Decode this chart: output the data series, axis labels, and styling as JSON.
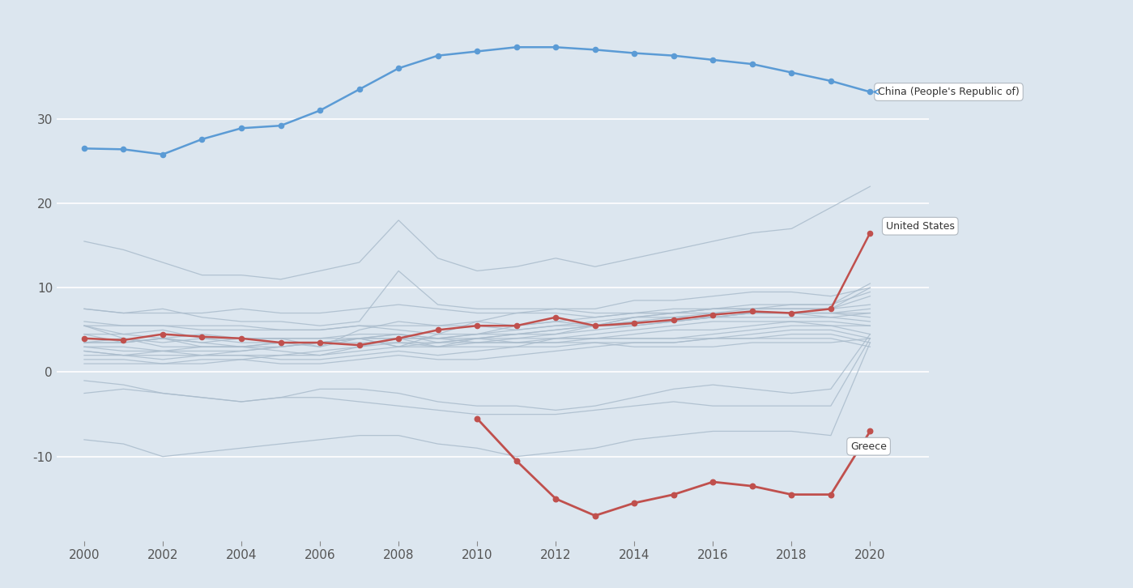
{
  "years": [
    2000,
    2001,
    2002,
    2003,
    2004,
    2005,
    2006,
    2007,
    2008,
    2009,
    2010,
    2011,
    2012,
    2013,
    2014,
    2015,
    2016,
    2017,
    2018,
    2019,
    2020
  ],
  "china": [
    26.5,
    26.4,
    25.8,
    27.6,
    28.9,
    29.2,
    31.0,
    33.5,
    36.0,
    37.5,
    38.0,
    38.5,
    38.5,
    38.2,
    37.8,
    37.5,
    37.0,
    36.5,
    35.5,
    34.5,
    33.2
  ],
  "united_states": [
    4.0,
    3.8,
    4.5,
    4.2,
    4.0,
    3.5,
    3.5,
    3.2,
    4.0,
    5.0,
    5.5,
    5.5,
    6.5,
    5.5,
    5.8,
    6.2,
    6.8,
    7.2,
    7.0,
    7.5,
    16.5
  ],
  "greece": [
    null,
    null,
    null,
    null,
    null,
    null,
    null,
    null,
    null,
    null,
    -5.5,
    -10.5,
    -15.0,
    -17.0,
    -15.5,
    -14.5,
    -13.0,
    -13.5,
    -14.5,
    -14.5,
    -7.0
  ],
  "background_color": "#dce6ef",
  "china_color": "#5b9bd5",
  "us_color": "#c0504d",
  "greece_color": "#c0504d",
  "gray_color": "#aabccc",
  "ylim": [
    -20,
    42
  ],
  "yticks": [
    -10,
    0,
    10,
    20,
    30
  ],
  "gray_series": [
    [
      15.5,
      14.5,
      13.0,
      11.5,
      11.5,
      11.0,
      12.0,
      13.0,
      18.0,
      13.5,
      12.0,
      12.5,
      13.5,
      12.5,
      13.5,
      14.5,
      15.5,
      16.5,
      17.0,
      19.5,
      22.0
    ],
    [
      7.5,
      7.0,
      7.0,
      7.0,
      7.5,
      7.0,
      7.0,
      7.5,
      8.0,
      7.5,
      7.0,
      7.0,
      7.5,
      7.5,
      8.5,
      8.5,
      9.0,
      9.5,
      9.5,
      9.0,
      10.0
    ],
    [
      5.5,
      5.5,
      5.5,
      5.5,
      5.5,
      5.0,
      5.0,
      5.5,
      5.0,
      4.5,
      4.5,
      5.0,
      5.5,
      6.0,
      6.5,
      6.5,
      7.0,
      7.5,
      7.5,
      7.5,
      9.0
    ],
    [
      6.0,
      5.5,
      5.5,
      5.0,
      5.0,
      5.0,
      5.0,
      5.5,
      5.5,
      5.5,
      5.5,
      5.0,
      5.5,
      5.5,
      6.5,
      7.0,
      7.5,
      7.5,
      8.0,
      8.0,
      9.5
    ],
    [
      4.5,
      4.5,
      5.0,
      4.0,
      3.5,
      3.5,
      3.5,
      4.0,
      4.0,
      4.0,
      4.5,
      5.5,
      6.0,
      6.5,
      7.0,
      7.5,
      7.5,
      8.0,
      8.0,
      8.0,
      10.5
    ],
    [
      3.5,
      3.5,
      4.0,
      3.0,
      3.0,
      3.5,
      3.5,
      4.0,
      4.5,
      3.5,
      4.0,
      4.5,
      4.5,
      5.5,
      6.5,
      7.0,
      7.5,
      7.5,
      7.5,
      7.5,
      10.0
    ],
    [
      3.5,
      3.5,
      4.0,
      3.5,
      3.0,
      3.5,
      3.0,
      5.0,
      6.0,
      5.5,
      6.0,
      5.5,
      6.0,
      5.5,
      6.0,
      6.0,
      6.5,
      7.0,
      7.0,
      7.0,
      7.5
    ],
    [
      3.0,
      2.5,
      2.5,
      3.0,
      3.0,
      3.0,
      3.5,
      4.0,
      4.5,
      4.0,
      4.5,
      4.5,
      5.0,
      5.5,
      6.0,
      6.5,
      6.5,
      7.0,
      7.0,
      6.5,
      7.0
    ],
    [
      5.5,
      4.0,
      3.5,
      4.0,
      4.0,
      4.0,
      3.0,
      4.0,
      3.0,
      4.5,
      6.0,
      7.0,
      7.0,
      6.5,
      7.0,
      7.0,
      7.5,
      7.5,
      7.5,
      7.5,
      8.0
    ],
    [
      3.5,
      4.0,
      3.0,
      3.0,
      3.0,
      2.5,
      2.0,
      3.0,
      4.0,
      3.0,
      4.0,
      4.5,
      5.0,
      5.5,
      5.5,
      6.0,
      6.5,
      7.0,
      7.0,
      7.0,
      6.5
    ],
    [
      2.5,
      2.0,
      2.5,
      2.0,
      2.0,
      2.0,
      2.0,
      2.5,
      3.0,
      3.0,
      3.5,
      4.0,
      4.5,
      5.0,
      5.5,
      6.0,
      6.5,
      6.5,
      6.5,
      6.5,
      6.0
    ],
    [
      2.0,
      2.0,
      2.0,
      2.0,
      2.0,
      1.5,
      1.5,
      2.0,
      2.5,
      2.0,
      2.5,
      3.0,
      4.0,
      4.5,
      5.0,
      5.5,
      6.0,
      6.0,
      6.0,
      6.0,
      5.5
    ],
    [
      5.5,
      4.5,
      4.0,
      3.5,
      4.0,
      4.0,
      4.0,
      4.5,
      4.5,
      4.0,
      4.0,
      4.0,
      4.0,
      4.0,
      4.5,
      5.0,
      5.0,
      5.5,
      6.0,
      5.5,
      5.5
    ],
    [
      2.5,
      2.0,
      1.5,
      2.0,
      2.5,
      3.0,
      3.5,
      4.0,
      4.0,
      4.0,
      3.5,
      3.5,
      3.5,
      4.0,
      4.0,
      4.0,
      4.5,
      5.0,
      5.5,
      5.5,
      4.5
    ],
    [
      3.0,
      3.0,
      2.5,
      2.5,
      2.5,
      3.0,
      3.5,
      3.5,
      3.5,
      3.5,
      4.0,
      3.5,
      4.0,
      4.0,
      4.0,
      4.0,
      4.0,
      4.5,
      5.0,
      5.0,
      4.0
    ],
    [
      1.5,
      1.5,
      1.0,
      1.0,
      1.5,
      2.0,
      2.5,
      3.0,
      3.5,
      3.0,
      3.0,
      3.0,
      3.0,
      3.5,
      3.5,
      3.5,
      4.0,
      4.0,
      4.5,
      4.5,
      3.5
    ],
    [
      -1.0,
      -1.5,
      -2.5,
      -3.0,
      -3.5,
      -3.0,
      -2.0,
      -2.0,
      -2.5,
      -3.5,
      -4.0,
      -4.0,
      -4.5,
      -4.0,
      -3.0,
      -2.0,
      -1.5,
      -2.0,
      -2.5,
      -2.0,
      4.5
    ],
    [
      4.5,
      3.5,
      4.0,
      4.5,
      4.0,
      4.0,
      4.0,
      4.0,
      3.0,
      3.5,
      3.5,
      3.5,
      3.5,
      3.5,
      3.0,
      3.0,
      3.0,
      3.5,
      3.5,
      3.5,
      4.0
    ],
    [
      -2.5,
      -2.0,
      -2.5,
      -3.0,
      -3.5,
      -3.0,
      -3.0,
      -3.5,
      -4.0,
      -4.5,
      -5.0,
      -5.0,
      -5.0,
      -4.5,
      -4.0,
      -3.5,
      -4.0,
      -4.0,
      -4.0,
      -4.0,
      4.0
    ],
    [
      1.0,
      1.0,
      1.0,
      1.5,
      1.5,
      1.0,
      1.0,
      1.5,
      2.0,
      1.5,
      1.5,
      2.0,
      2.5,
      3.0,
      3.5,
      3.5,
      4.0,
      4.0,
      4.0,
      4.0,
      3.0
    ],
    [
      -8.0,
      -8.5,
      -10.0,
      -9.5,
      -9.0,
      -8.5,
      -8.0,
      -7.5,
      -7.5,
      -8.5,
      -9.0,
      -10.0,
      -9.5,
      -9.0,
      -8.0,
      -7.5,
      -7.0,
      -7.0,
      -7.0,
      -7.5,
      3.5
    ],
    [
      7.5,
      7.0,
      7.5,
      6.5,
      6.0,
      6.0,
      5.5,
      6.0,
      12.0,
      8.0,
      7.5,
      7.5,
      7.5,
      7.0,
      7.0,
      7.0,
      7.0,
      7.0,
      7.0,
      7.0,
      7.0
    ]
  ]
}
